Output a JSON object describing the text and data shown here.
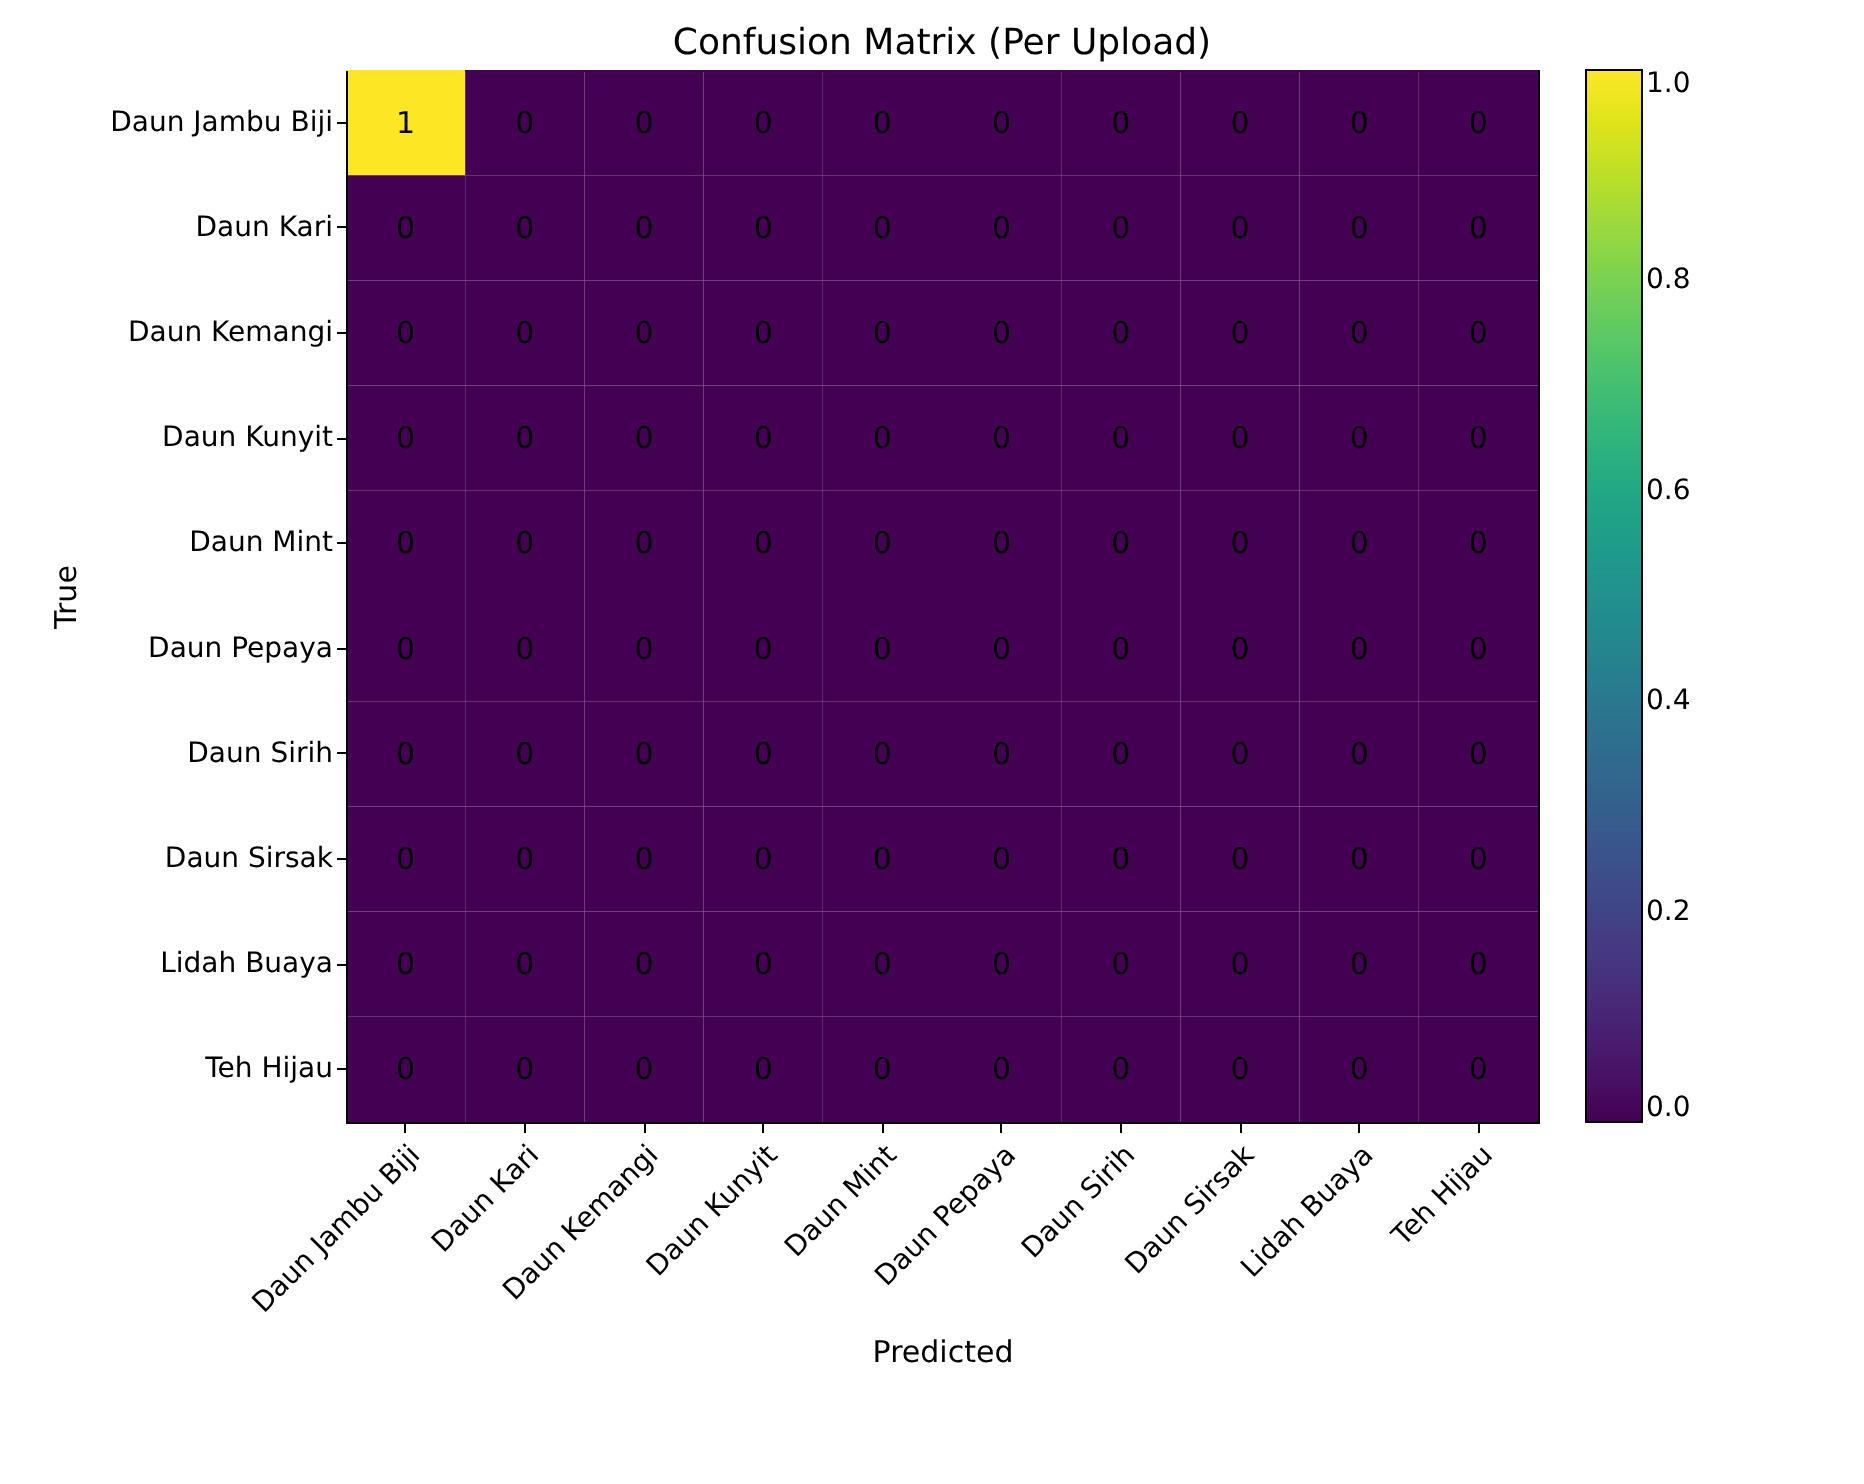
{
  "chart_data": {
    "type": "heatmap",
    "title": "Confusion Matrix (Per Upload)",
    "xlabel": "Predicted",
    "ylabel": "True",
    "categories": [
      "Daun Jambu Biji",
      "Daun Kari",
      "Daun Kemangi",
      "Daun Kunyit",
      "Daun Mint",
      "Daun Pepaya",
      "Daun Sirih",
      "Daun Sirsak",
      "Lidah Buaya",
      "Teh Hijau"
    ],
    "y_categories": [
      "Daun Jambu Biji",
      "Daun Kari",
      "Daun Kemangi",
      "Daun Kunyit",
      "Daun Mint",
      "Daun Pepaya",
      "Daun Sirih",
      "Daun Sirsak",
      "Lidah Buaya",
      "Teh Hijau"
    ],
    "cells": [
      [
        1,
        0,
        0,
        0,
        0,
        0,
        0,
        0,
        0,
        0
      ],
      [
        0,
        0,
        0,
        0,
        0,
        0,
        0,
        0,
        0,
        0
      ],
      [
        0,
        0,
        0,
        0,
        0,
        0,
        0,
        0,
        0,
        0
      ],
      [
        0,
        0,
        0,
        0,
        0,
        0,
        0,
        0,
        0,
        0
      ],
      [
        0,
        0,
        0,
        0,
        0,
        0,
        0,
        0,
        0,
        0
      ],
      [
        0,
        0,
        0,
        0,
        0,
        0,
        0,
        0,
        0,
        0
      ],
      [
        0,
        0,
        0,
        0,
        0,
        0,
        0,
        0,
        0,
        0
      ],
      [
        0,
        0,
        0,
        0,
        0,
        0,
        0,
        0,
        0,
        0
      ],
      [
        0,
        0,
        0,
        0,
        0,
        0,
        0,
        0,
        0,
        0
      ],
      [
        0,
        0,
        0,
        0,
        0,
        0,
        0,
        0,
        0,
        0
      ]
    ],
    "clim": [
      0,
      1
    ],
    "cticks": [
      {
        "value": 0,
        "label": "0.0"
      },
      {
        "value": 0.2,
        "label": "0.2"
      },
      {
        "value": 0.4,
        "label": "0.4"
      },
      {
        "value": 0.6,
        "label": "0.6"
      },
      {
        "value": 0.8,
        "label": "0.8"
      },
      {
        "value": 1,
        "label": "1.0"
      }
    ],
    "data_labels": true
  }
}
